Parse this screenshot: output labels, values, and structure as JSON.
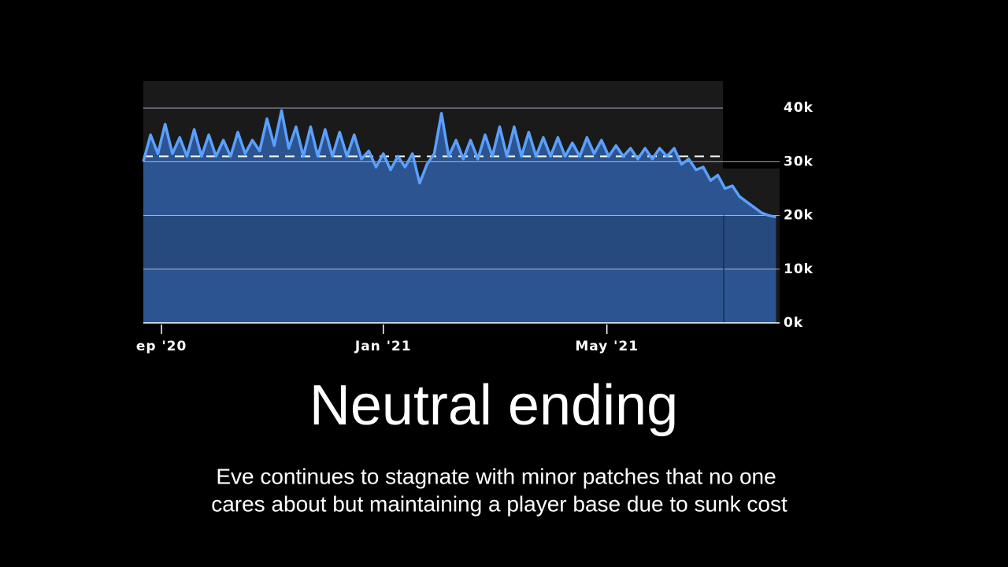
{
  "chart_data": {
    "type": "area",
    "x": [
      0,
      4,
      8,
      12,
      16,
      20,
      24,
      28,
      32,
      36,
      40,
      44,
      48,
      52,
      56,
      60,
      64,
      68,
      72,
      76,
      80,
      84,
      88,
      92,
      96,
      100,
      104,
      108,
      112,
      116,
      120,
      124,
      128,
      132,
      136,
      140,
      144,
      148,
      152,
      156,
      160,
      164,
      168,
      172,
      176,
      180,
      184,
      188,
      192,
      196,
      200,
      204,
      208,
      212,
      216,
      220,
      224,
      228,
      232,
      236,
      240,
      244,
      248,
      252,
      256,
      260,
      264,
      268,
      272,
      276,
      280,
      284,
      288,
      292,
      296,
      300,
      304,
      308,
      312,
      316,
      320,
      324,
      328,
      332,
      336,
      340,
      344,
      348
    ],
    "series": [
      {
        "color": "#5aa0ff",
        "fill": "#2c5490",
        "values": [
          30000,
          35000,
          31500,
          37000,
          31500,
          34500,
          31000,
          36000,
          31000,
          35000,
          31000,
          34000,
          31000,
          35500,
          31500,
          34000,
          32000,
          38000,
          33000,
          39500,
          32500,
          36500,
          31000,
          36500,
          31000,
          36000,
          31000,
          35500,
          31000,
          35000,
          30500,
          32000,
          29000,
          31500,
          28500,
          31000,
          29000,
          31500,
          26000,
          29500,
          31500,
          39000,
          31000,
          34000,
          30500,
          34000,
          30500,
          35000,
          31000,
          36500,
          31000,
          36500,
          31000,
          35500,
          31000,
          34500,
          31000,
          34500,
          31000,
          33500,
          31000,
          34500,
          31500,
          34000,
          31000,
          33000,
          31000,
          32500,
          30500,
          32500,
          30500,
          32500,
          31000,
          32500,
          29500,
          30500,
          28500,
          29000,
          26500,
          27500,
          25000,
          25500,
          23500,
          22500,
          21500,
          20500,
          20000,
          19700
        ]
      }
    ],
    "xlim": [
      0,
      350
    ],
    "xticks": [
      {
        "value": 10,
        "label": "ep '20"
      },
      {
        "value": 132,
        "label": "Jan '21"
      },
      {
        "value": 255,
        "label": "May '21"
      }
    ],
    "ylim": [
      0,
      45000
    ],
    "yticks": [
      {
        "value": 0,
        "label": "0k"
      },
      {
        "value": 10000,
        "label": "10k"
      },
      {
        "value": 20000,
        "label": "20k"
      },
      {
        "value": 30000,
        "label": "30k"
      },
      {
        "value": 40000,
        "label": "40k"
      }
    ],
    "average_line": 31000,
    "grid": true
  },
  "caption": {
    "title": "Neutral ending",
    "lines": [
      "Eve continues to stagnate with minor patches that no one",
      "cares about but maintaining a player base due to sunk cost"
    ]
  }
}
